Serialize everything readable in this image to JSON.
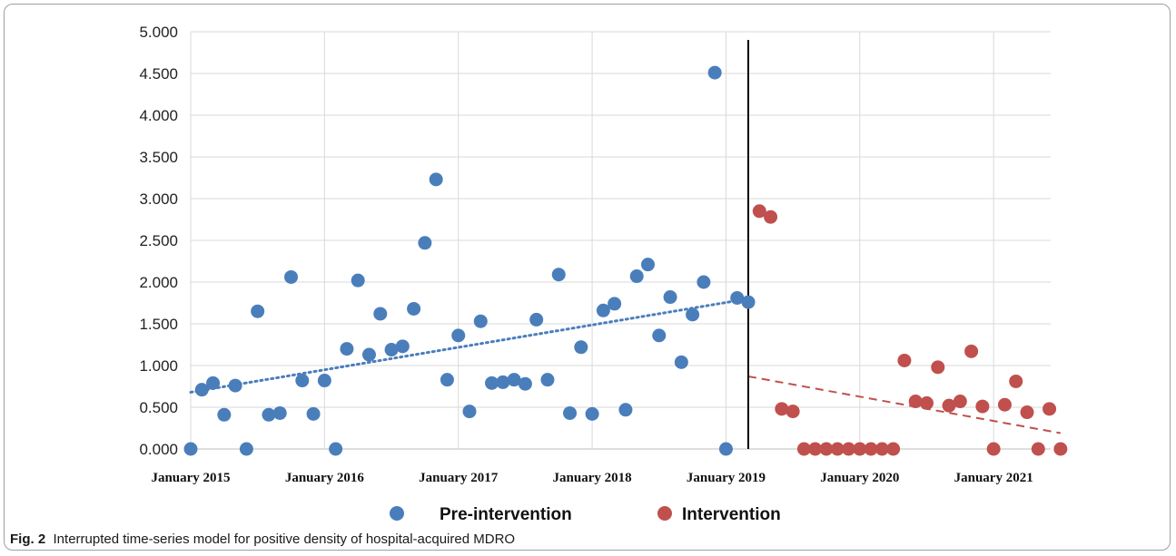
{
  "caption": {
    "label": "Fig. 2",
    "text": "Interrupted time-series model for positive density of hospital-acquired MDRO"
  },
  "chart_data": {
    "type": "scatter",
    "title": "",
    "xlabel": "",
    "ylabel": "",
    "x_start": "2015-01",
    "x_ticks": [
      {
        "label": "January 2015",
        "month": 0
      },
      {
        "label": "January 2016",
        "month": 12
      },
      {
        "label": "January 2017",
        "month": 24
      },
      {
        "label": "January 2018",
        "month": 36
      },
      {
        "label": "January 2019",
        "month": 48
      },
      {
        "label": "January 2020",
        "month": 60
      },
      {
        "label": "January 2021",
        "month": 72
      }
    ],
    "y_ticks": [
      "0.000",
      "0.500",
      "1.000",
      "1.500",
      "2.000",
      "2.500",
      "3.000",
      "3.500",
      "4.000",
      "4.500",
      "5.000"
    ],
    "ylim": [
      0,
      5
    ],
    "grid": true,
    "legend_position": "bottom",
    "intervention_month": 50,
    "series": [
      {
        "name": "Pre-intervention",
        "color": "#4a7ebb",
        "values": [
          0.0,
          0.71,
          0.79,
          0.41,
          0.76,
          0.0,
          1.65,
          0.41,
          0.43,
          2.06,
          0.82,
          0.42,
          0.82,
          0.0,
          1.2,
          2.02,
          1.13,
          1.62,
          1.19,
          1.23,
          1.68,
          2.47,
          3.23,
          0.83,
          1.36,
          0.45,
          1.53,
          0.79,
          0.8,
          0.83,
          0.78,
          1.55,
          0.83,
          2.09,
          0.43,
          1.22,
          0.42,
          1.66,
          1.74,
          0.47,
          2.07,
          2.21,
          1.36,
          1.82,
          1.04,
          1.61,
          2.0,
          4.51,
          0.0,
          1.81,
          1.76
        ],
        "trend": [
          0.68,
          1.8
        ]
      },
      {
        "name": "Intervention",
        "color": "#c0504d",
        "start_month": 51,
        "values": [
          2.85,
          2.78,
          0.48,
          0.45,
          0.0,
          0.0,
          0.0,
          0.0,
          0.0,
          0.0,
          0.0,
          0.0,
          0.0,
          1.06,
          0.57,
          0.55,
          0.98,
          0.52,
          0.57,
          1.17,
          0.51,
          0.0,
          0.53,
          0.81,
          0.44,
          0.0,
          0.48,
          0.0
        ],
        "trend": [
          0.87,
          0.19
        ]
      }
    ]
  }
}
